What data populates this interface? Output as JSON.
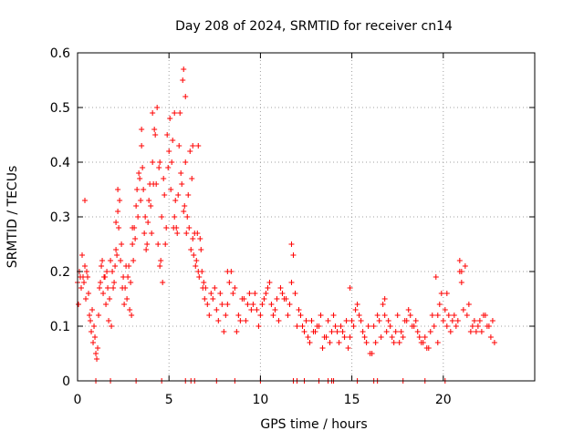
{
  "chart_data": {
    "type": "scatter",
    "title": "Day 208 of 2024, SRMTID for receiver cn14",
    "xlabel": "GPS time / hours",
    "ylabel": "SRMTID / TECUs",
    "xlim": [
      0,
      25
    ],
    "ylim": [
      0,
      0.6
    ],
    "x_ticks": [
      0,
      5,
      10,
      15,
      20
    ],
    "x_tick_labels": [
      "0",
      "5",
      "10",
      "15",
      "20"
    ],
    "y_ticks": [
      0,
      0.1,
      0.2,
      0.3,
      0.4,
      0.5,
      0.6
    ],
    "y_tick_labels": [
      "0",
      "0.1",
      "0.2",
      "0.3",
      "0.4",
      "0.5",
      "0.6"
    ],
    "grid": true,
    "marker": "+",
    "series": [
      {
        "name": "SRMTID",
        "color": "#ff0000",
        "x": [
          0.0,
          0.1,
          0.2,
          0.3,
          0.4,
          0.5,
          0.6,
          0.7,
          0.8,
          0.9,
          1.0,
          1.05,
          1.1,
          1.2,
          1.3,
          1.4,
          1.5,
          1.6,
          1.7,
          1.8,
          1.9,
          2.0,
          2.1,
          2.2,
          2.3,
          2.4,
          2.5,
          2.6,
          2.7,
          2.8,
          2.9,
          3.0,
          3.1,
          3.2,
          3.3,
          3.4,
          3.5,
          3.6,
          3.7,
          3.8,
          3.9,
          4.0,
          4.1,
          4.2,
          4.3,
          4.4,
          4.5,
          4.6,
          4.7,
          4.8,
          4.9,
          5.0,
          5.1,
          5.2,
          5.3,
          5.4,
          5.5,
          5.6,
          5.7,
          5.8,
          5.9,
          6.0,
          6.1,
          6.2,
          6.3,
          6.4,
          6.5,
          6.6,
          6.7,
          6.8,
          6.9,
          7.0,
          7.2,
          7.4,
          7.6,
          7.8,
          8.0,
          8.2,
          8.4,
          8.6,
          8.8,
          9.0,
          9.2,
          9.4,
          9.6,
          9.8,
          10.0,
          10.2,
          10.4,
          10.6,
          10.8,
          11.0,
          11.2,
          11.4,
          11.6,
          11.8,
          12.0,
          12.2,
          12.4,
          12.6,
          12.8,
          13.0,
          13.2,
          13.4,
          13.6,
          13.8,
          14.0,
          14.2,
          14.4,
          14.6,
          14.8,
          15.0,
          15.2,
          15.4,
          15.6,
          15.8,
          16.0,
          16.2,
          16.4,
          16.6,
          16.8,
          17.0,
          17.2,
          17.4,
          17.6,
          17.8,
          18.0,
          18.2,
          18.4,
          18.6,
          18.8,
          19.0,
          19.2,
          19.4,
          19.6,
          19.8,
          20.0,
          20.2,
          20.4,
          20.6,
          20.8,
          21.0,
          21.2,
          21.4,
          21.6,
          21.8,
          22.0,
          22.2,
          22.4,
          22.6,
          22.8,
          0.05,
          0.15,
          0.25,
          0.35,
          0.45,
          0.55,
          0.65,
          0.75,
          0.85,
          0.95,
          1.15,
          1.25,
          1.35,
          1.45,
          1.55,
          1.65,
          1.75,
          1.85,
          1.95,
          2.05,
          2.15,
          2.25,
          2.35,
          2.45,
          2.55,
          2.65,
          2.75,
          2.85,
          2.95,
          3.05,
          3.15,
          3.25,
          3.35,
          3.45,
          3.55,
          3.65,
          3.75,
          3.85,
          3.95,
          4.05,
          4.15,
          4.25,
          4.35,
          4.45,
          4.55,
          4.65,
          4.75,
          4.85,
          4.95,
          5.05,
          5.15,
          5.25,
          5.35,
          5.45,
          5.55,
          5.65,
          5.75,
          5.85,
          5.95,
          6.05,
          6.15,
          6.25,
          6.35,
          6.45,
          6.55,
          6.65,
          6.75,
          6.85,
          6.95,
          7.1,
          7.3,
          7.5,
          7.7,
          7.9,
          8.1,
          8.3,
          8.5,
          8.7,
          8.9,
          9.1,
          9.3,
          9.5,
          9.7,
          9.9,
          10.1,
          10.3,
          10.5,
          10.7,
          10.9,
          11.1,
          11.3,
          11.5,
          11.7,
          11.9,
          12.1,
          12.3,
          12.5,
          12.7,
          12.9,
          13.1,
          13.3,
          13.5,
          13.7,
          13.9,
          14.1,
          14.3,
          14.5,
          14.7,
          14.9,
          15.1,
          15.3,
          15.5,
          15.7,
          15.9,
          16.1,
          16.3,
          16.5,
          16.7,
          16.9,
          17.1,
          17.3,
          17.5,
          17.7,
          17.9,
          18.1,
          18.3,
          18.5,
          18.7,
          18.9,
          19.1,
          19.3,
          19.5,
          19.7,
          19.9,
          20.1,
          20.3,
          20.5,
          20.7,
          20.9,
          21.1,
          21.3,
          21.5,
          21.7,
          21.9,
          22.1,
          22.3,
          22.5,
          22.7,
          1.0,
          1.8,
          3.2,
          4.6,
          5.9,
          6.2,
          6.4,
          7.6,
          8.6,
          10.0,
          11.8,
          12.0,
          12.4,
          13.2,
          13.7,
          13.9,
          14.0,
          15.3,
          16.2,
          16.4,
          17.8,
          19.0,
          20.1,
          5.8,
          5.9,
          5.3,
          4.5,
          4.1,
          3.5,
          6.3,
          6.6,
          2.1,
          0.4,
          20.9,
          21.0,
          11.7,
          8.2,
          16.8,
          19.7,
          20.2,
          14.9,
          2.2,
          3.0
        ],
        "y": [
          0.18,
          0.2,
          0.17,
          0.19,
          0.21,
          0.2,
          0.16,
          0.11,
          0.13,
          0.1,
          0.05,
          0.04,
          0.06,
          0.17,
          0.21,
          0.16,
          0.19,
          0.2,
          0.11,
          0.22,
          0.2,
          0.18,
          0.24,
          0.31,
          0.33,
          0.25,
          0.19,
          0.17,
          0.15,
          0.21,
          0.18,
          0.25,
          0.28,
          0.32,
          0.3,
          0.37,
          0.43,
          0.35,
          0.3,
          0.25,
          0.33,
          0.32,
          0.4,
          0.46,
          0.36,
          0.25,
          0.21,
          0.3,
          0.37,
          0.25,
          0.45,
          0.42,
          0.35,
          0.44,
          0.3,
          0.28,
          0.34,
          0.49,
          0.36,
          0.31,
          0.4,
          0.3,
          0.28,
          0.24,
          0.26,
          0.27,
          0.22,
          0.2,
          0.26,
          0.2,
          0.18,
          0.17,
          0.12,
          0.15,
          0.13,
          0.16,
          0.09,
          0.14,
          0.2,
          0.17,
          0.12,
          0.15,
          0.11,
          0.16,
          0.14,
          0.13,
          0.12,
          0.15,
          0.17,
          0.14,
          0.13,
          0.11,
          0.16,
          0.15,
          0.14,
          0.23,
          0.1,
          0.12,
          0.09,
          0.08,
          0.11,
          0.09,
          0.1,
          0.06,
          0.08,
          0.07,
          0.12,
          0.09,
          0.1,
          0.08,
          0.06,
          0.11,
          0.13,
          0.12,
          0.09,
          0.07,
          0.05,
          0.1,
          0.12,
          0.08,
          0.12,
          0.11,
          0.08,
          0.09,
          0.07,
          0.08,
          0.11,
          0.12,
          0.1,
          0.09,
          0.07,
          0.08,
          0.06,
          0.12,
          0.19,
          0.14,
          0.11,
          0.1,
          0.09,
          0.12,
          0.11,
          0.18,
          0.21,
          0.14,
          0.1,
          0.09,
          0.11,
          0.12,
          0.1,
          0.08,
          0.07,
          0.14,
          0.19,
          0.23,
          0.18,
          0.15,
          0.19,
          0.12,
          0.09,
          0.07,
          0.08,
          0.12,
          0.18,
          0.22,
          0.19,
          0.14,
          0.17,
          0.15,
          0.1,
          0.17,
          0.21,
          0.23,
          0.28,
          0.22,
          0.17,
          0.14,
          0.21,
          0.19,
          0.13,
          0.12,
          0.22,
          0.26,
          0.35,
          0.38,
          0.33,
          0.39,
          0.27,
          0.24,
          0.29,
          0.36,
          0.27,
          0.36,
          0.45,
          0.5,
          0.39,
          0.22,
          0.18,
          0.34,
          0.28,
          0.39,
          0.48,
          0.4,
          0.28,
          0.33,
          0.27,
          0.43,
          0.38,
          0.55,
          0.32,
          0.27,
          0.34,
          0.42,
          0.37,
          0.23,
          0.21,
          0.27,
          0.19,
          0.24,
          0.17,
          0.15,
          0.14,
          0.16,
          0.17,
          0.11,
          0.14,
          0.12,
          0.18,
          0.16,
          0.09,
          0.11,
          0.15,
          0.14,
          0.13,
          0.16,
          0.1,
          0.14,
          0.16,
          0.18,
          0.12,
          0.15,
          0.17,
          0.15,
          0.12,
          0.18,
          0.16,
          0.13,
          0.1,
          0.11,
          0.07,
          0.09,
          0.1,
          0.12,
          0.08,
          0.11,
          0.09,
          0.1,
          0.07,
          0.09,
          0.11,
          0.08,
          0.1,
          0.14,
          0.11,
          0.08,
          0.1,
          0.05,
          0.07,
          0.11,
          0.14,
          0.09,
          0.1,
          0.07,
          0.12,
          0.09,
          0.11,
          0.13,
          0.1,
          0.11,
          0.08,
          0.07,
          0.06,
          0.09,
          0.1,
          0.07,
          0.16,
          0.13,
          0.12,
          0.11,
          0.1,
          0.2,
          0.13,
          0.12,
          0.09,
          0.11,
          0.1,
          0.09,
          0.12,
          0.1,
          0.11,
          0.0,
          0.0,
          0.0,
          0.0,
          0.0,
          0.0,
          0.0,
          0.0,
          0.0,
          0.0,
          0.0,
          0.0,
          0.0,
          0.0,
          0.0,
          0.0,
          0.0,
          0.0,
          0.0,
          0.0,
          0.0,
          0.0,
          0.0,
          0.57,
          0.52,
          0.49,
          0.4,
          0.49,
          0.46,
          0.43,
          0.43,
          0.29,
          0.33,
          0.22,
          0.2,
          0.25,
          0.2,
          0.15,
          0.12,
          0.16,
          0.17,
          0.35,
          0.28
        ]
      }
    ]
  }
}
